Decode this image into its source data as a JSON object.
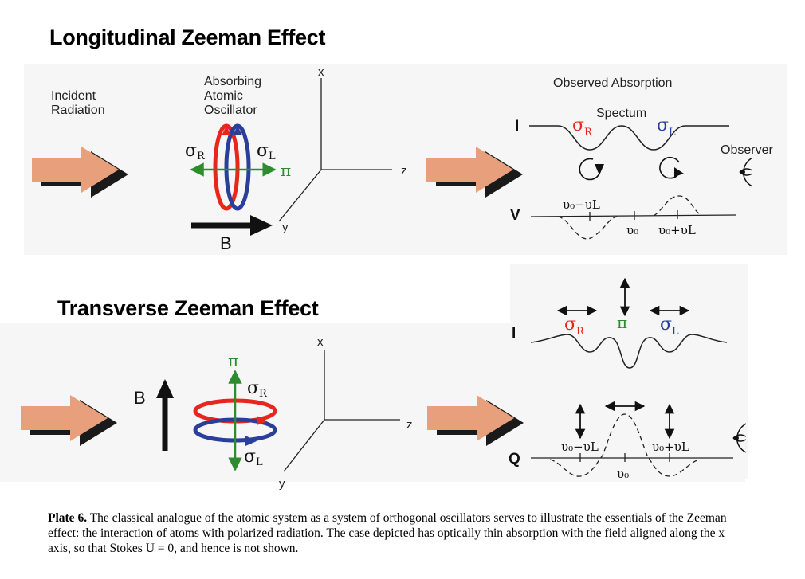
{
  "top": {
    "title": "Longitudinal Zeeman Effect",
    "incident_radiation": "Incident\nRadiation",
    "absorbing_oscillator": "Absorbing\nAtomic\nOscillator",
    "observed_absorption": "Observed Absorption",
    "spectrum": "Spectum",
    "observer": "Observer",
    "field": "B",
    "axes": {
      "x": "x",
      "y": "y",
      "z": "z"
    },
    "symbols": {
      "sigma": "σ",
      "R": "R",
      "L": "L",
      "pi": "π"
    },
    "profile_I": "I",
    "profile_V": "V",
    "freq": {
      "minus": "υ₀−υL",
      "center": "υ₀",
      "plus": "υ₀+υL"
    }
  },
  "bottom": {
    "title": "Transverse Zeeman Effect",
    "field": "B",
    "axes": {
      "x": "x",
      "y": "y",
      "z": "z"
    },
    "symbols": {
      "sigma": "σ",
      "R": "R",
      "L": "L",
      "pi": "π"
    },
    "profile_I": "I",
    "profile_Q": "Q",
    "freq": {
      "minus": "υ₀−υL",
      "center": "υ₀",
      "plus": "υ₀+υL"
    }
  },
  "caption": {
    "label": "Plate 6.",
    "text": "The classical analogue of the atomic system as a system of orthogonal oscillators serves to illustrate the essentials of the Zeeman effect: the interaction of atoms with polarized radiation. The case depicted has optically thin absorption with the field aligned along the x axis, so that Stokes U = 0, and hence is not shown."
  },
  "colors": {
    "red": "#e8261d",
    "blue": "#2a3f9c",
    "green": "#2e8b2e",
    "arrow": "#e8a07c"
  }
}
